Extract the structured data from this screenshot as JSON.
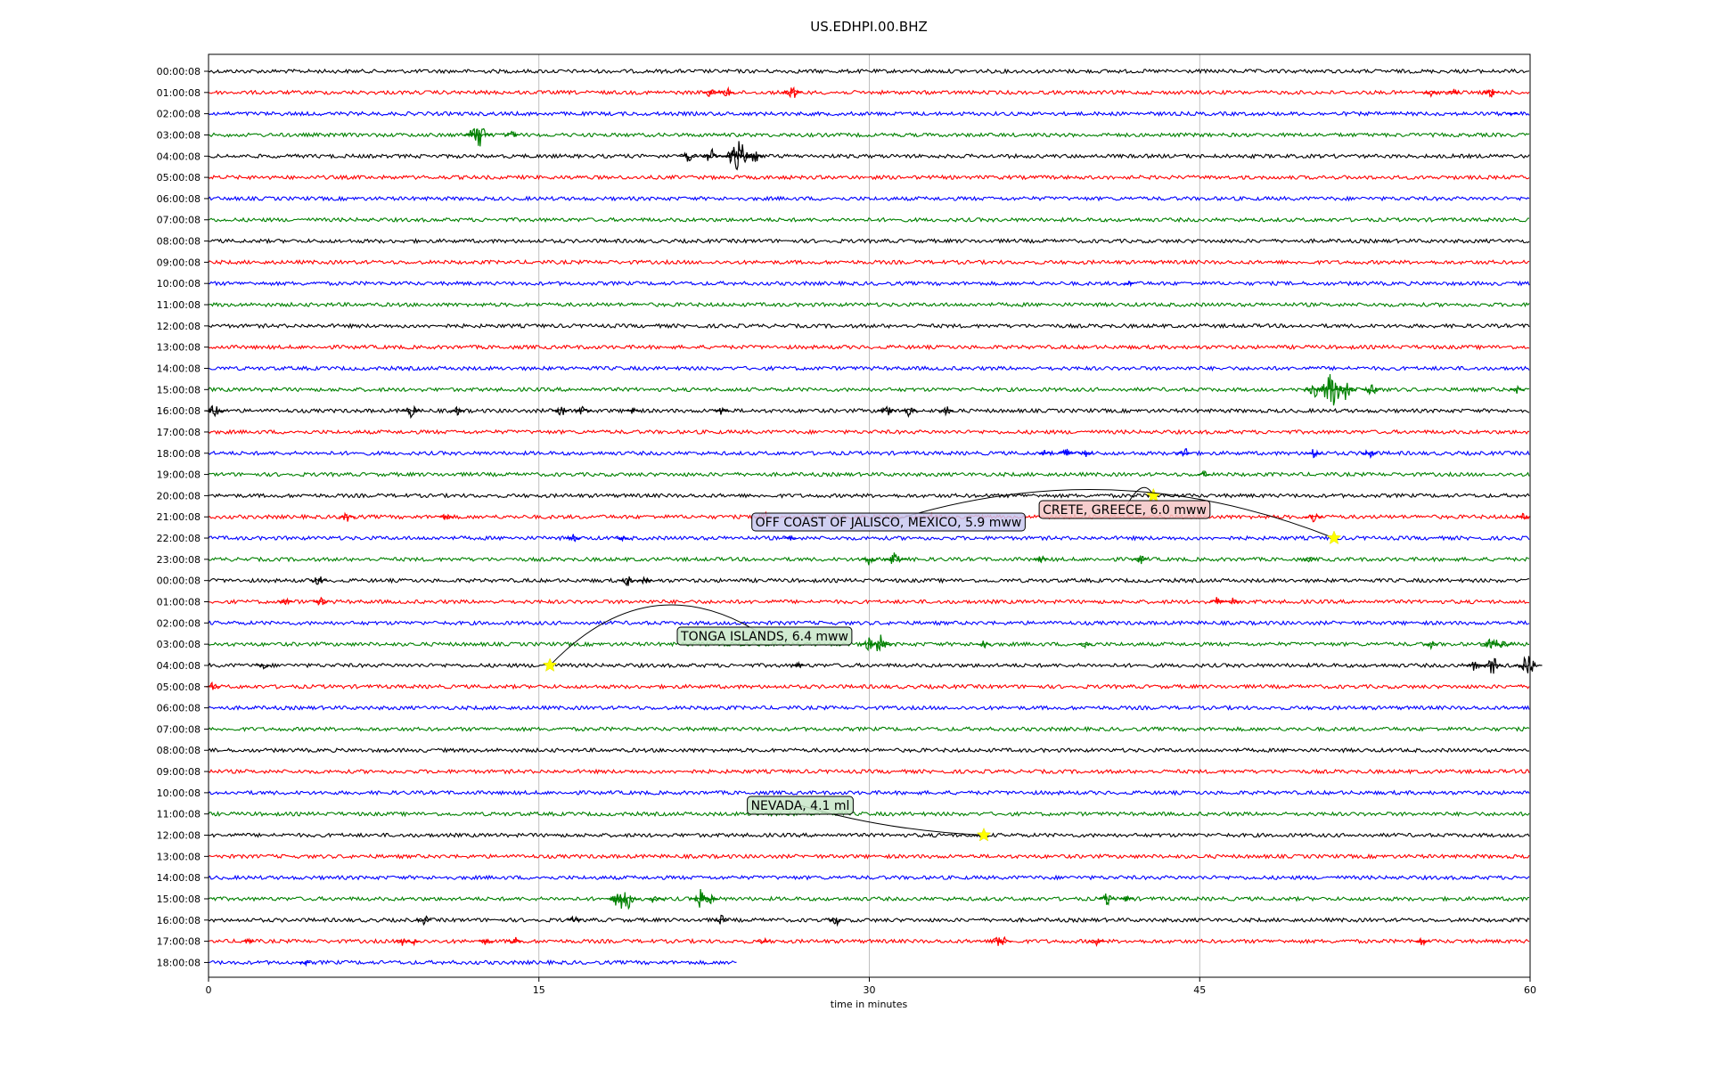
{
  "chart_data": {
    "type": "line",
    "title": "US.EDHPI.00.BHZ",
    "xlabel": "time in minutes",
    "ylabel": "",
    "xlim": [
      0,
      60
    ],
    "xticks": [
      "0",
      "15",
      "30",
      "45",
      "60"
    ],
    "grid": "vertical",
    "colors": [
      "#000000",
      "#ff0000",
      "#0000ff",
      "#008000"
    ],
    "row_labels": [
      "00:00:08",
      "01:00:08",
      "02:00:08",
      "03:00:08",
      "04:00:08",
      "05:00:08",
      "06:00:08",
      "07:00:08",
      "08:00:08",
      "09:00:08",
      "10:00:08",
      "11:00:08",
      "12:00:08",
      "13:00:08",
      "14:00:08",
      "15:00:08",
      "16:00:08",
      "17:00:08",
      "18:00:08",
      "19:00:08",
      "20:00:08",
      "21:00:08",
      "22:00:08",
      "23:00:08",
      "00:00:08",
      "01:00:08",
      "02:00:08",
      "03:00:08",
      "04:00:08",
      "05:00:08",
      "06:00:08",
      "07:00:08",
      "08:00:08",
      "09:00:08",
      "10:00:08",
      "11:00:08",
      "12:00:08",
      "13:00:08",
      "14:00:08",
      "15:00:08",
      "16:00:08",
      "17:00:08",
      "18:00:08"
    ],
    "last_row_end_minute": 24,
    "bursts": [
      {
        "row": 1,
        "minute": 22.8,
        "amp": 0.7
      },
      {
        "row": 1,
        "minute": 23.5,
        "amp": 0.7
      },
      {
        "row": 1,
        "minute": 26.5,
        "amp": 0.9
      },
      {
        "row": 1,
        "minute": 55.5,
        "amp": 0.5
      },
      {
        "row": 1,
        "minute": 56.5,
        "amp": 0.5
      },
      {
        "row": 1,
        "minute": 58.2,
        "amp": 0.7
      },
      {
        "row": 2,
        "minute": 59.2,
        "amp": 0.3
      },
      {
        "row": 3,
        "minute": 12.0,
        "amp": 0.8
      },
      {
        "row": 3,
        "minute": 12.3,
        "amp": 1.4
      },
      {
        "row": 3,
        "minute": 13.8,
        "amp": 0.5
      },
      {
        "row": 4,
        "minute": 21.8,
        "amp": 0.8
      },
      {
        "row": 4,
        "minute": 22.8,
        "amp": 0.9
      },
      {
        "row": 4,
        "minute": 23.8,
        "amp": 1.1
      },
      {
        "row": 4,
        "minute": 24.1,
        "amp": 1.7
      },
      {
        "row": 4,
        "minute": 24.8,
        "amp": 0.8
      },
      {
        "row": 10,
        "minute": 41.8,
        "amp": 0.3
      },
      {
        "row": 15,
        "minute": 50.2,
        "amp": 0.9
      },
      {
        "row": 15,
        "minute": 51.0,
        "amp": 2.0
      },
      {
        "row": 15,
        "minute": 51.6,
        "amp": 1.2
      },
      {
        "row": 15,
        "minute": 52.8,
        "amp": 0.9
      },
      {
        "row": 15,
        "minute": 59.4,
        "amp": 0.5
      },
      {
        "row": 16,
        "minute": 0.3,
        "amp": 0.9
      },
      {
        "row": 16,
        "minute": 9.2,
        "amp": 0.8
      },
      {
        "row": 16,
        "minute": 11.3,
        "amp": 0.5
      },
      {
        "row": 16,
        "minute": 16.0,
        "amp": 0.8
      },
      {
        "row": 16,
        "minute": 17.0,
        "amp": 0.7
      },
      {
        "row": 16,
        "minute": 19.3,
        "amp": 0.5
      },
      {
        "row": 16,
        "minute": 23.3,
        "amp": 0.5
      },
      {
        "row": 16,
        "minute": 30.8,
        "amp": 0.9
      },
      {
        "row": 16,
        "minute": 31.8,
        "amp": 0.7
      },
      {
        "row": 16,
        "minute": 33.5,
        "amp": 0.6
      },
      {
        "row": 18,
        "minute": 38.0,
        "amp": 0.5
      },
      {
        "row": 18,
        "minute": 39.0,
        "amp": 0.8
      },
      {
        "row": 18,
        "minute": 39.8,
        "amp": 0.5
      },
      {
        "row": 18,
        "minute": 44.3,
        "amp": 0.7
      },
      {
        "row": 18,
        "minute": 50.2,
        "amp": 0.6
      },
      {
        "row": 18,
        "minute": 52.7,
        "amp": 0.7
      },
      {
        "row": 19,
        "minute": 45.2,
        "amp": 0.4
      },
      {
        "row": 20,
        "minute": 42.9,
        "amp": 0.3
      },
      {
        "row": 21,
        "minute": 6.3,
        "amp": 0.7
      },
      {
        "row": 21,
        "minute": 10.8,
        "amp": 0.5
      },
      {
        "row": 21,
        "minute": 25.2,
        "amp": 0.7
      },
      {
        "row": 21,
        "minute": 32.8,
        "amp": 0.4
      },
      {
        "row": 21,
        "minute": 50.2,
        "amp": 0.8
      },
      {
        "row": 21,
        "minute": 59.7,
        "amp": 0.5
      },
      {
        "row": 22,
        "minute": 16.6,
        "amp": 0.5
      },
      {
        "row": 22,
        "minute": 18.8,
        "amp": 0.4
      },
      {
        "row": 22,
        "minute": 26.4,
        "amp": 0.4
      },
      {
        "row": 23,
        "minute": 30.0,
        "amp": 0.7
      },
      {
        "row": 23,
        "minute": 31.2,
        "amp": 1.1
      },
      {
        "row": 23,
        "minute": 37.8,
        "amp": 0.5
      },
      {
        "row": 23,
        "minute": 42.3,
        "amp": 0.6
      },
      {
        "row": 23,
        "minute": 50.0,
        "amp": 0.4
      },
      {
        "row": 24,
        "minute": 5.0,
        "amp": 0.7
      },
      {
        "row": 24,
        "minute": 19.0,
        "amp": 0.7
      },
      {
        "row": 24,
        "minute": 19.8,
        "amp": 0.5
      },
      {
        "row": 25,
        "minute": 3.5,
        "amp": 0.5
      },
      {
        "row": 25,
        "minute": 5.1,
        "amp": 0.6
      },
      {
        "row": 25,
        "minute": 45.8,
        "amp": 0.6
      },
      {
        "row": 25,
        "minute": 46.5,
        "amp": 0.5
      },
      {
        "row": 27,
        "minute": 30.0,
        "amp": 0.8
      },
      {
        "row": 27,
        "minute": 30.5,
        "amp": 1.2
      },
      {
        "row": 27,
        "minute": 35.2,
        "amp": 0.6
      },
      {
        "row": 27,
        "minute": 39.8,
        "amp": 0.5
      },
      {
        "row": 27,
        "minute": 55.5,
        "amp": 0.5
      },
      {
        "row": 27,
        "minute": 58.3,
        "amp": 1.2
      },
      {
        "row": 27,
        "minute": 58.8,
        "amp": 0.7
      },
      {
        "row": 28,
        "minute": 2.5,
        "amp": 0.5
      },
      {
        "row": 28,
        "minute": 26.8,
        "amp": 0.4
      },
      {
        "row": 28,
        "minute": 57.5,
        "amp": 0.7
      },
      {
        "row": 28,
        "minute": 58.3,
        "amp": 1.0
      },
      {
        "row": 28,
        "minute": 59.9,
        "amp": 1.5
      },
      {
        "row": 29,
        "minute": 0.2,
        "amp": 0.5
      },
      {
        "row": 39,
        "minute": 18.5,
        "amp": 0.8
      },
      {
        "row": 39,
        "minute": 18.9,
        "amp": 1.6
      },
      {
        "row": 39,
        "minute": 20.3,
        "amp": 0.8
      },
      {
        "row": 39,
        "minute": 22.4,
        "amp": 1.2
      },
      {
        "row": 39,
        "minute": 22.8,
        "amp": 0.6
      },
      {
        "row": 39,
        "minute": 40.8,
        "amp": 0.7
      },
      {
        "row": 39,
        "minute": 41.7,
        "amp": 0.5
      },
      {
        "row": 40,
        "minute": 9.8,
        "amp": 0.6
      },
      {
        "row": 40,
        "minute": 16.6,
        "amp": 0.5
      },
      {
        "row": 40,
        "minute": 23.3,
        "amp": 0.6
      },
      {
        "row": 40,
        "minute": 28.5,
        "amp": 0.6
      },
      {
        "row": 41,
        "minute": 1.8,
        "amp": 0.4
      },
      {
        "row": 41,
        "minute": 8.8,
        "amp": 0.5
      },
      {
        "row": 41,
        "minute": 9.3,
        "amp": 0.4
      },
      {
        "row": 41,
        "minute": 12.6,
        "amp": 0.5
      },
      {
        "row": 41,
        "minute": 13.9,
        "amp": 0.6
      },
      {
        "row": 41,
        "minute": 25.2,
        "amp": 0.4
      },
      {
        "row": 41,
        "minute": 35.8,
        "amp": 0.6
      },
      {
        "row": 41,
        "minute": 36.1,
        "amp": 0.5
      },
      {
        "row": 41,
        "minute": 40.3,
        "amp": 0.7
      },
      {
        "row": 41,
        "minute": 55.1,
        "amp": 0.5
      },
      {
        "row": 42,
        "minute": 4.4,
        "amp": 0.3
      }
    ],
    "events": [
      {
        "label": "CRETE, GREECE, 6.0 mww",
        "row": 20,
        "minute": 42.9
      },
      {
        "label": "OFF COAST OF JALISCO, MEXICO, 5.9 mww",
        "row": 22,
        "minute": 51.1
      },
      {
        "label": "TONGA ISLANDS, 6.4 mww",
        "row": 28,
        "minute": 15.5
      },
      {
        "label": "NEVADA, 4.1 ml",
        "row": 36,
        "minute": 35.2
      }
    ]
  }
}
